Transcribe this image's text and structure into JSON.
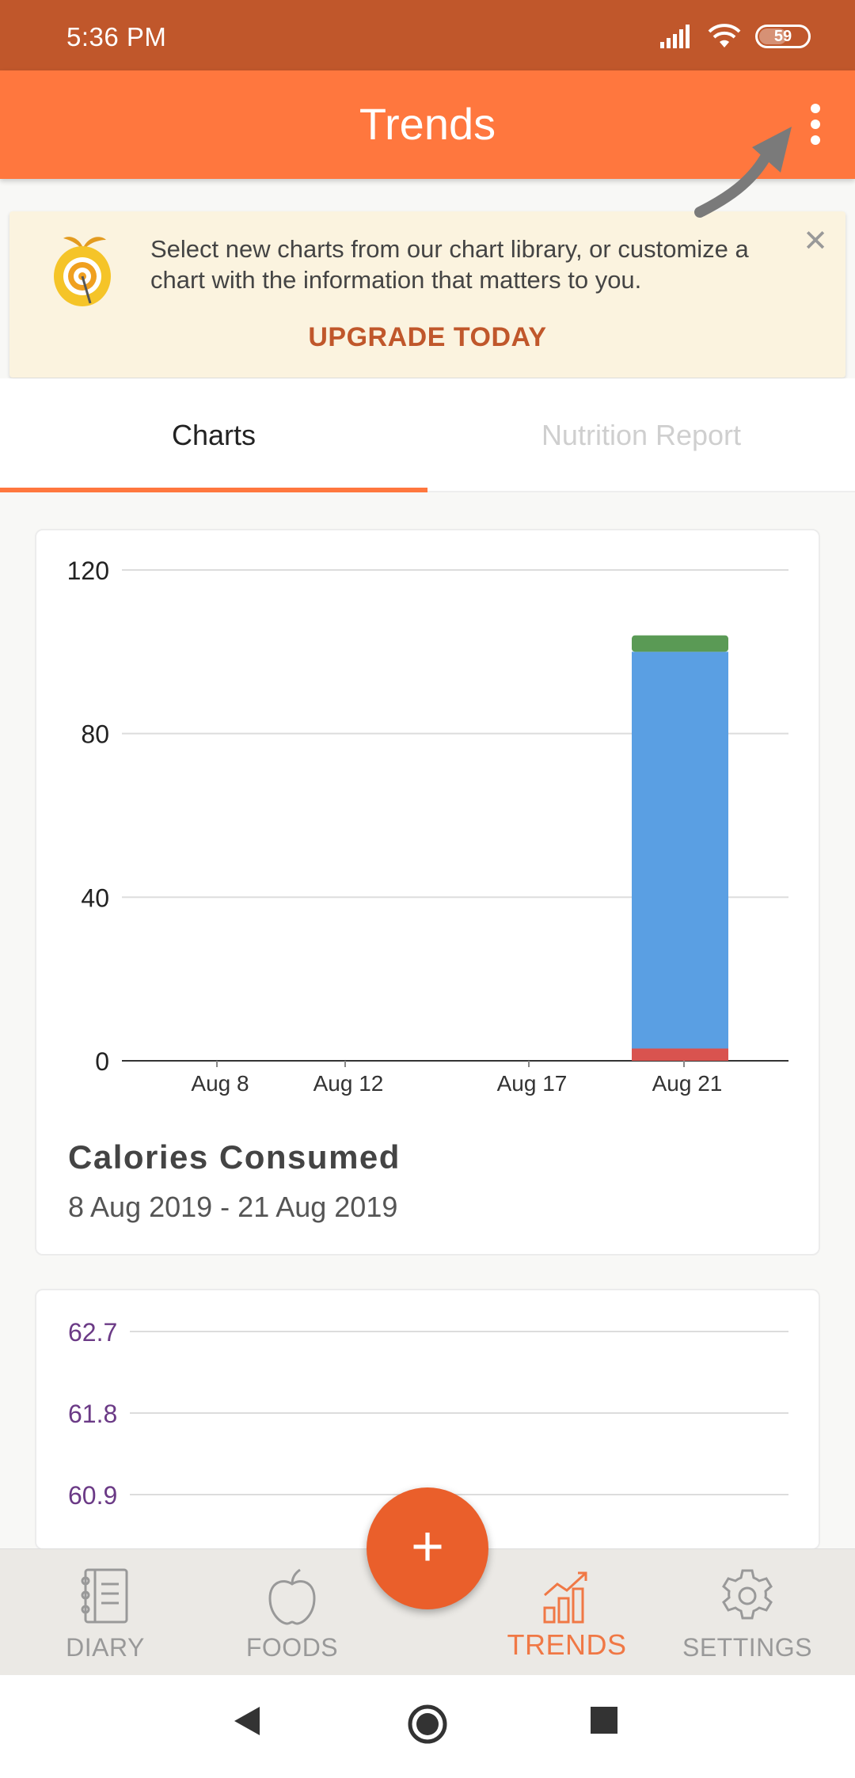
{
  "status_bar": {
    "time": "5:36 PM",
    "battery": "59",
    "signal_icon": "cell-signal-icon",
    "wifi_icon": "wifi-icon"
  },
  "app_bar": {
    "title": "Trends",
    "menu_icon": "more-vert-icon"
  },
  "banner": {
    "message": "Select new charts from our chart library, or customize a chart with the information that matters to you.",
    "action": "UPGRADE TODAY",
    "close_icon": "close-icon"
  },
  "tabs": [
    {
      "label": "Charts",
      "active": true
    },
    {
      "label": "Nutrition Report",
      "active": false
    }
  ],
  "chart_data": [
    {
      "type": "bar",
      "title": "Calories Consumed",
      "subtitle": "8 Aug 2019 - 21 Aug 2019",
      "y_ticks": [
        "120",
        "80",
        "40",
        "0"
      ],
      "ylim": [
        0,
        120
      ],
      "x_labels": [
        "Aug 8",
        "Aug 12",
        "Aug 17",
        "Aug 21"
      ],
      "categories": [
        "Aug 21"
      ],
      "stacked": true,
      "series": [
        {
          "values": [
            3
          ],
          "color": "#d9534f"
        },
        {
          "values": [
            97
          ],
          "color": "#5a9fe3"
        },
        {
          "values": [
            4
          ],
          "color": "#5a9a55"
        }
      ]
    },
    {
      "type": "line",
      "y_ticks": [
        "62.7",
        "61.8",
        "60.9"
      ],
      "tick_color": "#6b3a86"
    }
  ],
  "fab": {
    "label": "+"
  },
  "bottom_nav": [
    {
      "label": "DIARY",
      "icon": "diary-icon",
      "active": false
    },
    {
      "label": "FOODS",
      "icon": "apple-icon",
      "active": false
    },
    {
      "label": "TRENDS",
      "icon": "trends-chart-icon",
      "active": true
    },
    {
      "label": "SETTINGS",
      "icon": "gear-icon",
      "active": false
    }
  ],
  "colors": {
    "primary": "#ff773e",
    "status_bar": "#c0572b",
    "accent": "#ea5f2b"
  }
}
